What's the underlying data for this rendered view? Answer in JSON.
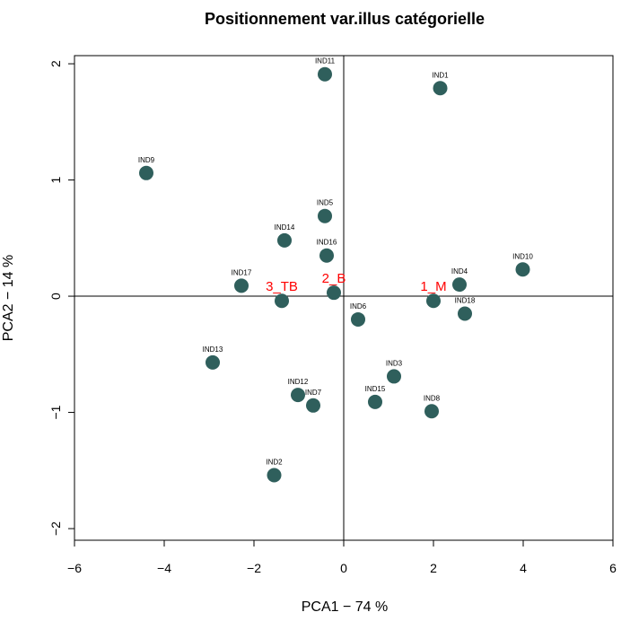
{
  "chart_data": {
    "type": "scatter",
    "title": "Positionnement var.illus catégorielle",
    "xlabel": "PCA1 −  74 %",
    "ylabel": "PCA2 − 14 %",
    "xlim": [
      -6,
      6
    ],
    "ylim": [
      -2.1,
      2.07
    ],
    "xticks": [
      -6,
      -4,
      -2,
      0,
      2,
      4,
      6
    ],
    "yticks": [
      -2,
      -1,
      0,
      1,
      2
    ],
    "xtick_labels": [
      "−6",
      "−4",
      "−2",
      "0",
      "2",
      "4",
      "6"
    ],
    "ytick_labels": [
      "−2",
      "−1",
      "0",
      "1",
      "2"
    ],
    "grid": false,
    "reference_lines": {
      "x": 0,
      "y": 0
    },
    "colors": {
      "individuals": "#2f5f5c",
      "supplementary": "#ff0000",
      "supplementary_point": "#2f5f5c"
    },
    "individuals": [
      {
        "label": "IND1",
        "x": 2.15,
        "y": 1.79
      },
      {
        "label": "IND2",
        "x": -1.55,
        "y": -1.54
      },
      {
        "label": "IND3",
        "x": 1.12,
        "y": -0.69
      },
      {
        "label": "IND4",
        "x": 2.58,
        "y": 0.1
      },
      {
        "label": "IND5",
        "x": -0.42,
        "y": 0.69
      },
      {
        "label": "IND6",
        "x": 0.32,
        "y": -0.2
      },
      {
        "label": "IND7",
        "x": -0.68,
        "y": -0.94
      },
      {
        "label": "IND8",
        "x": 1.96,
        "y": -0.99
      },
      {
        "label": "IND9",
        "x": -4.4,
        "y": 1.06
      },
      {
        "label": "IND10",
        "x": 3.99,
        "y": 0.23
      },
      {
        "label": "IND11",
        "x": -0.42,
        "y": 1.91
      },
      {
        "label": "IND12",
        "x": -1.02,
        "y": -0.85
      },
      {
        "label": "IND13",
        "x": -2.92,
        "y": -0.57
      },
      {
        "label": "IND14",
        "x": -1.32,
        "y": 0.48
      },
      {
        "label": "IND15",
        "x": 0.7,
        "y": -0.91
      },
      {
        "label": "IND16",
        "x": -0.38,
        "y": 0.35
      },
      {
        "label": "IND17",
        "x": -2.28,
        "y": 0.09
      },
      {
        "label": "IND18",
        "x": 2.7,
        "y": -0.15
      }
    ],
    "supplementary": [
      {
        "label": "3_TB",
        "x": -1.38,
        "y": -0.04
      },
      {
        "label": "2_B",
        "x": -0.22,
        "y": 0.03
      },
      {
        "label": "1_M",
        "x": 2.0,
        "y": -0.04
      }
    ]
  }
}
